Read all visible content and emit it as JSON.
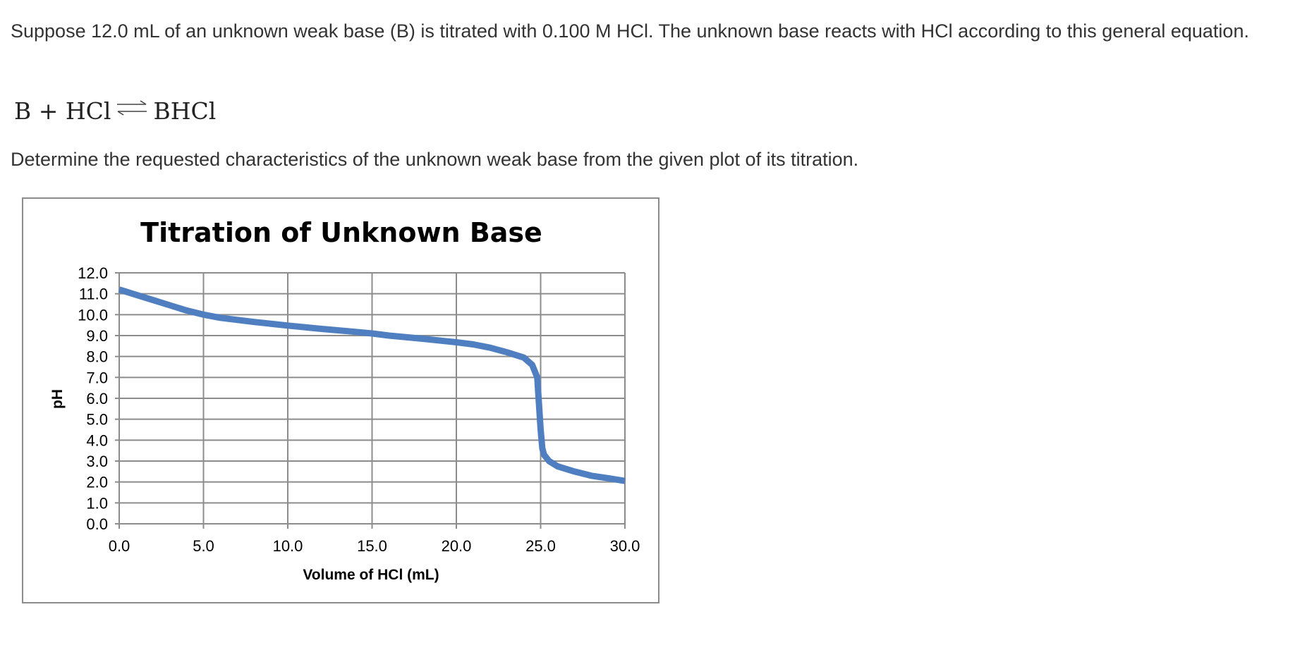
{
  "question": {
    "intro": "Suppose 12.0 mL of an unknown weak base (B) is titrated with 0.100 M HCl. The unknown base reacts with HCl according to this general equation.",
    "equation": {
      "left": "B + HCl",
      "right": "BHCl"
    },
    "instruction": "Determine the requested characteristics of the unknown weak base from the given plot of its titration."
  },
  "colors": {
    "text": "#333333",
    "curve": "#4f7fc1",
    "grid": "#8c8c8c",
    "frame": "#8c8c8c"
  },
  "chart_data": {
    "type": "line",
    "title": "Titration of Unknown Base",
    "xlabel": "Volume of HCl (mL)",
    "ylabel": "pH",
    "xlim": [
      0,
      30
    ],
    "ylim": [
      0,
      12
    ],
    "x_ticks": [
      0,
      5,
      10,
      15,
      20,
      25,
      30
    ],
    "y_ticks": [
      0,
      1,
      2,
      3,
      4,
      5,
      6,
      7,
      8,
      9,
      10,
      11,
      12
    ],
    "x_tick_labels": [
      "0.0",
      "5.0",
      "10.0",
      "15.0",
      "20.0",
      "25.0",
      "30.0"
    ],
    "y_tick_labels": [
      "0.0",
      "1.0",
      "2.0",
      "3.0",
      "4.0",
      "5.0",
      "6.0",
      "7.0",
      "8.0",
      "9.0",
      "10.0",
      "11.0",
      "12.0"
    ],
    "grid": true,
    "legend": "none",
    "series": [
      {
        "x": [
          0,
          1,
          2,
          3,
          4,
          5,
          6,
          8,
          10,
          12,
          14,
          15,
          16,
          18,
          20,
          21,
          22,
          23,
          24,
          24.5,
          24.8,
          25.0,
          25.1,
          25.2,
          25.5,
          26,
          27,
          28,
          29,
          30
        ],
        "y": [
          11.2,
          10.95,
          10.7,
          10.45,
          10.2,
          10.0,
          9.85,
          9.65,
          9.48,
          9.32,
          9.18,
          9.1,
          9.0,
          8.85,
          8.68,
          8.58,
          8.42,
          8.2,
          7.95,
          7.6,
          7.0,
          4.5,
          3.6,
          3.3,
          3.0,
          2.75,
          2.5,
          2.3,
          2.18,
          2.05
        ]
      }
    ]
  }
}
